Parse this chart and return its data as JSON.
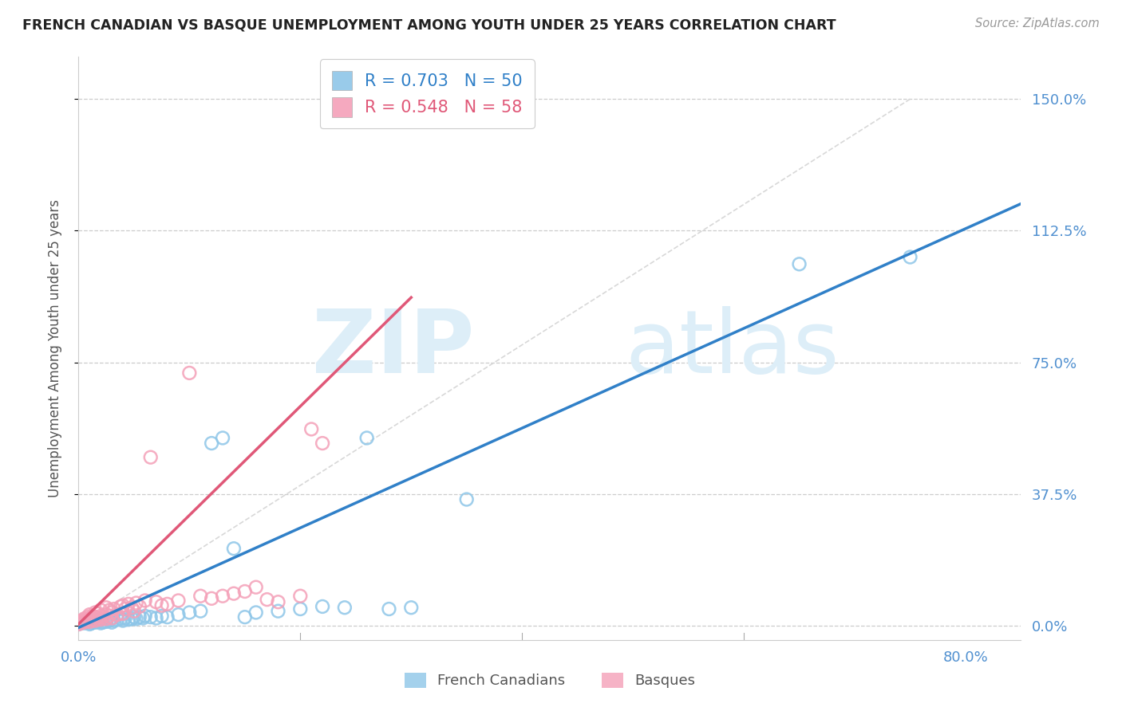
{
  "title": "FRENCH CANADIAN VS BASQUE UNEMPLOYMENT AMONG YOUTH UNDER 25 YEARS CORRELATION CHART",
  "source": "Source: ZipAtlas.com",
  "ylabel": "Unemployment Among Youth under 25 years",
  "ytick_labels": [
    "0.0%",
    "37.5%",
    "75.0%",
    "112.5%",
    "150.0%"
  ],
  "ytick_values": [
    0.0,
    0.375,
    0.75,
    1.125,
    1.5
  ],
  "xtick_labels": [
    "0.0%",
    "80.0%"
  ],
  "xtick_values": [
    0.0,
    0.8
  ],
  "legend_fc_label": "French Canadians",
  "legend_bq_label": "Basques",
  "fc_R": "0.703",
  "fc_N": "50",
  "bq_R": "0.548",
  "bq_N": "58",
  "fc_scatter_color": "#8ec6e8",
  "bq_scatter_color": "#f4a0b8",
  "fc_line_color": "#3080c8",
  "bq_line_color": "#e05878",
  "diagonal_color": "#d8d8d8",
  "title_color": "#222222",
  "ylabel_color": "#555555",
  "tick_color": "#5090d0",
  "watermark_color": "#ddeef8",
  "watermark_zip": "ZIP",
  "watermark_atlas": "atlas",
  "xlim": [
    0.0,
    0.85
  ],
  "ylim": [
    -0.04,
    1.62
  ],
  "fc_x": [
    0.0,
    0.005,
    0.008,
    0.01,
    0.01,
    0.012,
    0.015,
    0.018,
    0.02,
    0.02,
    0.022,
    0.025,
    0.025,
    0.028,
    0.03,
    0.03,
    0.032,
    0.035,
    0.038,
    0.04,
    0.042,
    0.045,
    0.048,
    0.05,
    0.052,
    0.055,
    0.058,
    0.06,
    0.065,
    0.07,
    0.075,
    0.08,
    0.09,
    0.1,
    0.11,
    0.12,
    0.13,
    0.14,
    0.15,
    0.16,
    0.18,
    0.2,
    0.22,
    0.24,
    0.26,
    0.28,
    0.3,
    0.35,
    0.65,
    0.75
  ],
  "fc_y": [
    0.005,
    0.008,
    0.01,
    0.005,
    0.015,
    0.008,
    0.01,
    0.012,
    0.008,
    0.018,
    0.01,
    0.012,
    0.02,
    0.015,
    0.01,
    0.022,
    0.015,
    0.018,
    0.02,
    0.015,
    0.022,
    0.018,
    0.02,
    0.025,
    0.02,
    0.025,
    0.022,
    0.028,
    0.025,
    0.022,
    0.028,
    0.025,
    0.032,
    0.038,
    0.042,
    0.52,
    0.535,
    0.22,
    0.025,
    0.038,
    0.042,
    0.048,
    0.055,
    0.052,
    0.535,
    0.048,
    0.052,
    0.36,
    1.03,
    1.05
  ],
  "bq_x": [
    0.0,
    0.0,
    0.002,
    0.003,
    0.005,
    0.005,
    0.007,
    0.008,
    0.01,
    0.01,
    0.01,
    0.012,
    0.013,
    0.015,
    0.015,
    0.015,
    0.018,
    0.018,
    0.02,
    0.02,
    0.02,
    0.022,
    0.025,
    0.025,
    0.025,
    0.028,
    0.028,
    0.03,
    0.03,
    0.032,
    0.035,
    0.038,
    0.04,
    0.04,
    0.042,
    0.045,
    0.048,
    0.05,
    0.052,
    0.055,
    0.06,
    0.065,
    0.07,
    0.075,
    0.08,
    0.09,
    0.1,
    0.11,
    0.12,
    0.13,
    0.14,
    0.15,
    0.16,
    0.17,
    0.18,
    0.2,
    0.21,
    0.22
  ],
  "bq_y": [
    0.005,
    0.012,
    0.008,
    0.015,
    0.01,
    0.02,
    0.015,
    0.025,
    0.012,
    0.022,
    0.032,
    0.018,
    0.028,
    0.015,
    0.025,
    0.038,
    0.022,
    0.035,
    0.018,
    0.028,
    0.045,
    0.025,
    0.02,
    0.032,
    0.052,
    0.028,
    0.045,
    0.022,
    0.038,
    0.048,
    0.032,
    0.055,
    0.035,
    0.058,
    0.048,
    0.062,
    0.052,
    0.042,
    0.065,
    0.055,
    0.072,
    0.48,
    0.068,
    0.058,
    0.062,
    0.072,
    0.72,
    0.085,
    0.078,
    0.085,
    0.092,
    0.098,
    0.11,
    0.075,
    0.068,
    0.085,
    0.56,
    0.52
  ],
  "fc_line_x": [
    0.0,
    0.85
  ],
  "fc_line_slope": 1.42,
  "fc_line_intercept": -0.005,
  "bq_line_x": [
    0.0,
    0.3
  ],
  "bq_line_slope": 3.1,
  "bq_line_intercept": 0.005
}
